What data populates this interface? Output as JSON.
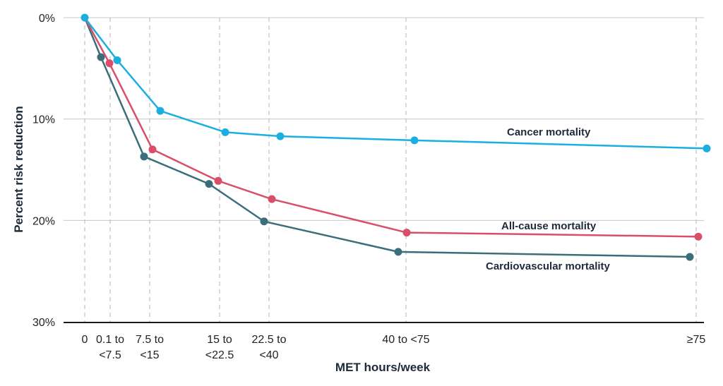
{
  "chart_data": {
    "type": "line",
    "xlabel": "MET hours/week",
    "ylabel": "Percent risk reduction",
    "ylim": [
      0,
      30
    ],
    "y_inverted": true,
    "y_ticks": [
      {
        "value": 0,
        "label": "0%"
      },
      {
        "value": 10,
        "label": "10%"
      },
      {
        "value": 20,
        "label": "20%"
      },
      {
        "value": 30,
        "label": "30%"
      }
    ],
    "x_categories": [
      {
        "key": "0",
        "lines": [
          "0"
        ]
      },
      {
        "key": "0.1to7.5",
        "lines": [
          "0.1 to",
          "<7.5"
        ]
      },
      {
        "key": "7.5to15",
        "lines": [
          "7.5 to",
          "<15"
        ]
      },
      {
        "key": "15to22.5",
        "lines": [
          "15 to",
          "<22.5"
        ]
      },
      {
        "key": "22.5to40",
        "lines": [
          "22.5 to",
          "<40"
        ]
      },
      {
        "key": "40to75",
        "lines": [
          "40 to <75"
        ]
      },
      {
        "key": "ge75",
        "lines": [
          "≥75"
        ]
      }
    ],
    "series": [
      {
        "name": "Cancer mortality",
        "color": "#1aafe0",
        "points": [
          {
            "x": 0,
            "y": 0
          },
          {
            "x": 0.1,
            "y": 4.2
          },
          {
            "x": 7.5,
            "y": 9.2
          },
          {
            "x": 15,
            "y": 11.3
          },
          {
            "x": 22.5,
            "y": 11.7
          },
          {
            "x": 40,
            "y": 12.1
          },
          {
            "x": 75,
            "y": 12.9
          }
        ]
      },
      {
        "name": "All-cause mortality",
        "color": "#d94f6a",
        "points": [
          {
            "x": 0,
            "y": 0
          },
          {
            "x": 0.1,
            "y": 4.5
          },
          {
            "x": 7.5,
            "y": 13.0
          },
          {
            "x": 15,
            "y": 16.1
          },
          {
            "x": 22.5,
            "y": 17.9
          },
          {
            "x": 40,
            "y": 21.2
          },
          {
            "x": 75,
            "y": 21.6
          }
        ]
      },
      {
        "name": "Cardiovascular mortality",
        "color": "#3a6e7a",
        "points": [
          {
            "x": 0,
            "y": 0
          },
          {
            "x": 0.1,
            "y": 3.9
          },
          {
            "x": 7.5,
            "y": 13.7
          },
          {
            "x": 15,
            "y": 16.4
          },
          {
            "x": 22.5,
            "y": 20.1
          },
          {
            "x": 40,
            "y": 23.1
          },
          {
            "x": 75,
            "y": 23.6
          }
        ]
      }
    ],
    "grid": true
  }
}
